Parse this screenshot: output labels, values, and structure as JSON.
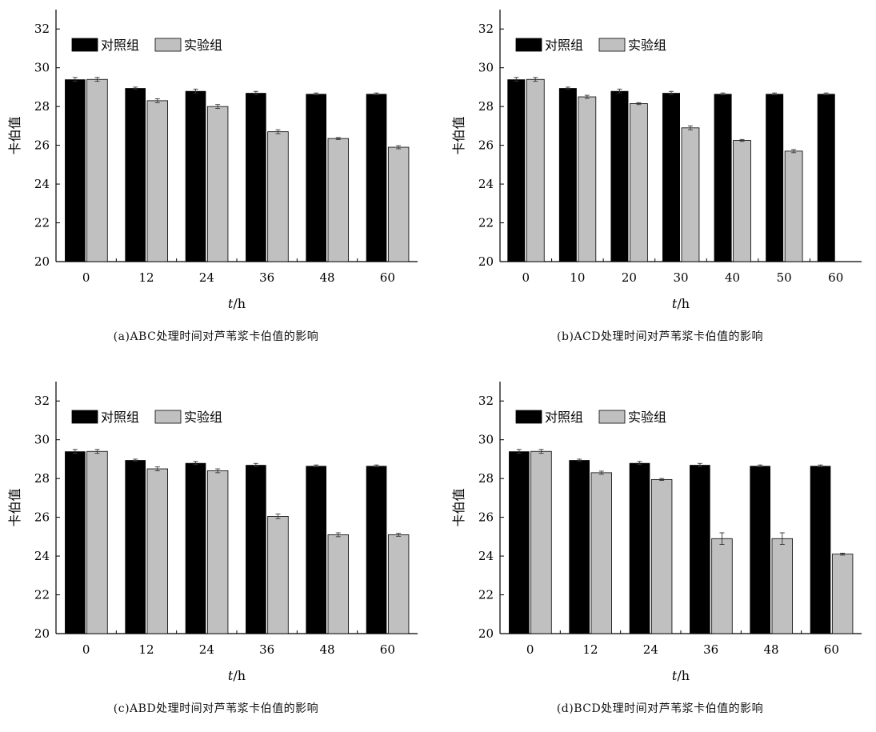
{
  "chart_data": [
    {
      "type": "bar",
      "caption": "(a)ABC处理时间对芦苇浆卡伯值的影响",
      "xlabel_italic": "t",
      "xlabel_unit": "/h",
      "ylabel": "卡伯值",
      "ylim": [
        20,
        33
      ],
      "yticks": [
        20,
        22,
        24,
        26,
        28,
        30,
        32
      ],
      "categories": [
        "0",
        "12",
        "24",
        "36",
        "48",
        "60"
      ],
      "legend_position": "top-left",
      "series": [
        {
          "name": "对照组",
          "color": "#000000",
          "values": [
            29.4,
            28.95,
            28.8,
            28.7,
            28.65,
            28.65
          ],
          "errors": [
            0.1,
            0.05,
            0.1,
            0.08,
            0.05,
            0.05
          ]
        },
        {
          "name": "实验组",
          "color": "#c0c0c0",
          "values": [
            29.4,
            28.3,
            28.0,
            26.7,
            26.35,
            25.9
          ],
          "errors": [
            0.1,
            0.1,
            0.1,
            0.1,
            0.05,
            0.08
          ]
        }
      ]
    },
    {
      "type": "bar",
      "caption": "(b)ACD处理时间对芦苇浆卡伯值的影响",
      "xlabel_italic": "t",
      "xlabel_unit": "/h",
      "ylabel": "卡伯值",
      "ylim": [
        20,
        33
      ],
      "yticks": [
        20,
        22,
        24,
        26,
        28,
        30,
        32
      ],
      "categories": [
        "0",
        "10",
        "20",
        "30",
        "40",
        "50",
        "60"
      ],
      "legend_position": "top-left",
      "series": [
        {
          "name": "对照组",
          "color": "#000000",
          "values": [
            29.4,
            28.95,
            28.8,
            28.7,
            28.65,
            28.65,
            28.65
          ],
          "errors": [
            0.1,
            0.05,
            0.1,
            0.08,
            0.05,
            0.05,
            0.05
          ]
        },
        {
          "name": "实验组",
          "color": "#c0c0c0",
          "values": [
            29.4,
            28.5,
            28.15,
            26.9,
            26.25,
            25.7,
            null
          ],
          "errors": [
            0.1,
            0.08,
            0.05,
            0.1,
            0.05,
            0.08,
            null
          ]
        }
      ]
    },
    {
      "type": "bar",
      "caption": "(c)ABD处理时间对芦苇浆卡伯值的影响",
      "xlabel_italic": "t",
      "xlabel_unit": "/h",
      "ylabel": "卡伯值",
      "ylim": [
        20,
        33
      ],
      "yticks": [
        20,
        22,
        24,
        26,
        28,
        30,
        32
      ],
      "categories": [
        "0",
        "12",
        "24",
        "36",
        "48",
        "60"
      ],
      "legend_position": "top-left",
      "series": [
        {
          "name": "对照组",
          "color": "#000000",
          "values": [
            29.4,
            28.95,
            28.8,
            28.7,
            28.65,
            28.65
          ],
          "errors": [
            0.1,
            0.05,
            0.08,
            0.08,
            0.05,
            0.05
          ]
        },
        {
          "name": "实验组",
          "color": "#c0c0c0",
          "values": [
            29.4,
            28.5,
            28.4,
            26.05,
            25.1,
            25.1
          ],
          "errors": [
            0.1,
            0.1,
            0.1,
            0.12,
            0.1,
            0.08
          ]
        }
      ]
    },
    {
      "type": "bar",
      "caption": "(d)BCD处理时间对芦苇浆卡伯值的影响",
      "xlabel_italic": "t",
      "xlabel_unit": "/h",
      "ylabel": "卡伯值",
      "ylim": [
        20,
        33
      ],
      "yticks": [
        20,
        22,
        24,
        26,
        28,
        30,
        32
      ],
      "categories": [
        "0",
        "12",
        "24",
        "36",
        "48",
        "60"
      ],
      "legend_position": "top-left",
      "series": [
        {
          "name": "对照组",
          "color": "#000000",
          "values": [
            29.4,
            28.95,
            28.8,
            28.7,
            28.65,
            28.65
          ],
          "errors": [
            0.1,
            0.05,
            0.08,
            0.08,
            0.05,
            0.05
          ]
        },
        {
          "name": "实验组",
          "color": "#c0c0c0",
          "values": [
            29.4,
            28.3,
            27.95,
            24.9,
            24.9,
            24.1
          ],
          "errors": [
            0.1,
            0.08,
            0.05,
            0.3,
            0.3,
            0.05
          ]
        }
      ]
    }
  ]
}
